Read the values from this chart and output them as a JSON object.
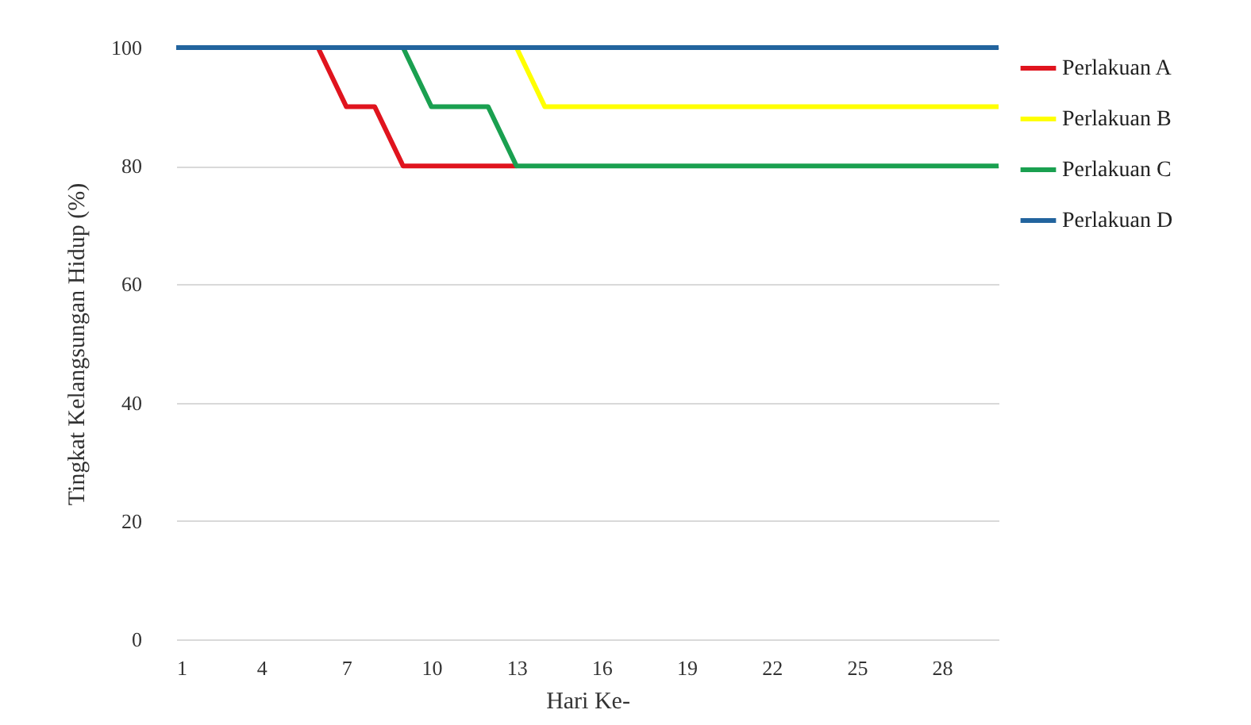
{
  "chart_data": {
    "type": "line",
    "xlabel": "Hari Ke-",
    "ylabel": "Tingkat Kelangsungan Hidup (%)",
    "x": [
      1,
      2,
      3,
      4,
      5,
      6,
      7,
      8,
      9,
      10,
      11,
      12,
      13,
      14,
      15,
      16,
      17,
      18,
      19,
      20,
      21,
      22,
      23,
      24,
      25,
      26,
      27,
      28,
      29,
      30
    ],
    "series": [
      {
        "name": "Perlakuan A",
        "color": "#e0141e",
        "values": [
          null,
          null,
          null,
          null,
          null,
          100,
          90,
          90,
          80,
          80,
          80,
          80,
          80,
          null,
          null,
          null,
          null,
          null,
          null,
          null,
          null,
          null,
          null,
          null,
          null,
          null,
          null,
          null,
          null,
          null
        ]
      },
      {
        "name": "Perlakuan B",
        "color": "#ffff00",
        "values": [
          null,
          null,
          null,
          null,
          null,
          null,
          null,
          null,
          null,
          null,
          null,
          null,
          100,
          90,
          90,
          90,
          90,
          90,
          90,
          90,
          90,
          90,
          90,
          90,
          90,
          90,
          90,
          90,
          90,
          90
        ]
      },
      {
        "name": "Perlakuan C",
        "color": "#1aa050",
        "values": [
          null,
          null,
          null,
          null,
          null,
          null,
          null,
          null,
          100,
          90,
          90,
          90,
          80,
          80,
          80,
          80,
          80,
          80,
          80,
          80,
          80,
          80,
          80,
          80,
          80,
          80,
          80,
          80,
          80,
          80
        ]
      },
      {
        "name": "Perlakuan D",
        "color": "#22649e",
        "values": [
          100,
          100,
          100,
          100,
          100,
          100,
          100,
          100,
          100,
          100,
          100,
          100,
          100,
          100,
          100,
          100,
          100,
          100,
          100,
          100,
          100,
          100,
          100,
          100,
          100,
          100,
          100,
          100,
          100,
          100
        ]
      }
    ],
    "xlim": [
      1,
      30
    ],
    "xticks": [
      1,
      4,
      7,
      10,
      13,
      16,
      19,
      22,
      25,
      28
    ],
    "ylim": [
      0,
      100
    ],
    "yticks": [
      0,
      20,
      40,
      60,
      80,
      100
    ],
    "grid": "y",
    "legend": "right",
    "marker": "none",
    "line_style": "solid"
  }
}
